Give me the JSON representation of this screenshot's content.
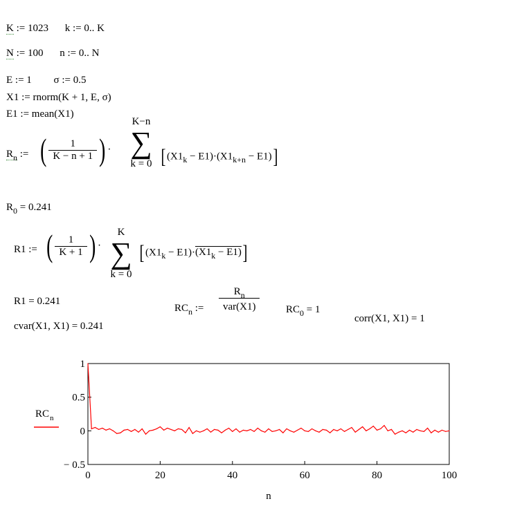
{
  "defs": {
    "K_line": {
      "lhs": "K",
      "op": ":=",
      "val": "1023",
      "rhs": "k := 0.. K"
    },
    "N_line": {
      "lhs": "N",
      "op": ":=",
      "val": "100",
      "rhs": "n := 0.. N"
    },
    "E_line": {
      "lhs": "E := 1",
      "rhs": "σ := 0.5"
    },
    "X1_line": "X1 := rnorm(K + 1, E, σ)",
    "E1_line": "E1 := mean(X1)"
  },
  "R_def": {
    "lhs": "R",
    "lhs_sub": "n",
    "assign": ":=",
    "frac_num": "1",
    "frac_den": "K − n + 1",
    "sum_top": "K−n",
    "sum_bottom": "k = 0",
    "term_a": "(X1",
    "term_a_sub": "k",
    "term_a_tail": " − E1)·(X1",
    "term_b_sub": "k+n",
    "term_b_tail": " − E1)"
  },
  "R0_result": {
    "lhs": "R",
    "sub": "0",
    "rhs": "= 0.241"
  },
  "R1_def": {
    "lhs": "R1 :=",
    "frac_num": "1",
    "frac_den": "K + 1",
    "sum_top": "K",
    "sum_bottom": "k = 0",
    "term_a": "(X1",
    "term_a_sub": "k",
    "term_a_tail": " − E1)·",
    "term_b": "(X1",
    "term_b_sub": "k",
    "term_b_tail": " − E1)"
  },
  "R1_result": "R1 = 0.241",
  "cvar_result": "cvar(X1, X1) = 0.241",
  "RC_def": {
    "lhs": "RC",
    "lhs_sub": "n",
    "assign": ":=",
    "num": "R",
    "num_sub": "n",
    "den": "var(X1)"
  },
  "RC0_result": {
    "lhs": "RC",
    "sub": "0",
    "rhs": "= 1"
  },
  "corr_result": "corr(X1, X1) = 1",
  "chart_data": {
    "type": "line",
    "xlabel": "n",
    "legend": [
      {
        "label": "RC",
        "sub": "n",
        "color": "#ff0000"
      }
    ],
    "xlim": [
      0,
      100
    ],
    "ylim": [
      -0.5,
      1
    ],
    "xticks": [
      "0",
      "20",
      "40",
      "60",
      "80",
      "100"
    ],
    "yticks": [
      "1",
      "0.5",
      "0",
      "− 0.5"
    ],
    "series": [
      {
        "color": "#ff0000",
        "x": [
          0,
          1,
          2,
          3,
          4,
          5,
          6,
          7,
          8,
          9,
          10,
          11,
          12,
          13,
          14,
          15,
          16,
          17,
          18,
          19,
          20,
          21,
          22,
          23,
          24,
          25,
          26,
          27,
          28,
          29,
          30,
          31,
          32,
          33,
          34,
          35,
          36,
          37,
          38,
          39,
          40,
          41,
          42,
          43,
          44,
          45,
          46,
          47,
          48,
          49,
          50,
          51,
          52,
          53,
          54,
          55,
          56,
          57,
          58,
          59,
          60,
          61,
          62,
          63,
          64,
          65,
          66,
          67,
          68,
          69,
          70,
          71,
          72,
          73,
          74,
          75,
          76,
          77,
          78,
          79,
          80,
          81,
          82,
          83,
          84,
          85,
          86,
          87,
          88,
          89,
          90,
          91,
          92,
          93,
          94,
          95,
          96,
          97,
          98,
          99,
          100
        ],
        "values": [
          1,
          0.03,
          0.05,
          0.02,
          0.04,
          0.01,
          0.03,
          0.0,
          -0.04,
          -0.03,
          0.01,
          0.02,
          -0.01,
          0.02,
          -0.02,
          0.03,
          -0.05,
          0.0,
          0.01,
          0.03,
          0.06,
          0.01,
          0.04,
          0.02,
          0.0,
          0.03,
          0.02,
          -0.03,
          0.05,
          -0.04,
          0.0,
          -0.02,
          0.0,
          0.03,
          -0.02,
          0.02,
          0.01,
          -0.03,
          0.01,
          0.04,
          -0.01,
          0.03,
          -0.02,
          0.01,
          0.0,
          0.02,
          -0.01,
          0.04,
          0.0,
          -0.02,
          0.03,
          -0.01,
          0.0,
          0.02,
          -0.03,
          0.03,
          0.0,
          -0.02,
          0.01,
          0.04,
          0.0,
          -0.01,
          0.03,
          0.0,
          -0.02,
          0.02,
          0.01,
          -0.03,
          0.02,
          0.0,
          0.03,
          -0.01,
          0.02,
          0.05,
          -0.02,
          0.02,
          0.06,
          0.0,
          0.03,
          0.07,
          0.01,
          0.03,
          0.08,
          0.0,
          0.02,
          -0.05,
          -0.02,
          0.0,
          -0.03,
          0.01,
          -0.02,
          0.02,
          0.0,
          -0.01,
          0.04,
          -0.03,
          0.01,
          -0.02,
          0.01,
          -0.01,
          0.0
        ]
      }
    ]
  }
}
